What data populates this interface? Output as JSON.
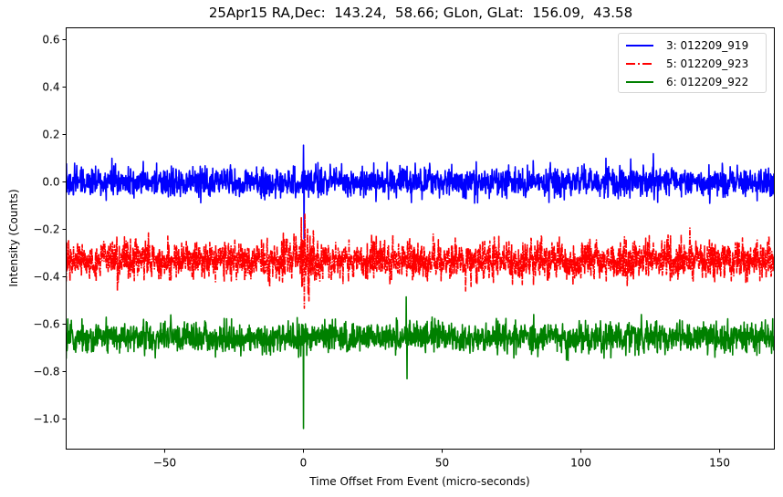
{
  "chart_data": {
    "type": "line",
    "title": "25Apr15 RA,Dec:  143.24,  58.66; GLon, GLat:  156.09,  43.58",
    "xlabel": "Time Offset From Event (micro-seconds)",
    "ylabel": "Intensity (Counts)",
    "xlim": [
      -85.5,
      169.7
    ],
    "ylim": [
      -1.127,
      0.65
    ],
    "xticks": [
      -50,
      0,
      50,
      100,
      150
    ],
    "xtick_labels": [
      "−50",
      "0",
      "50",
      "100",
      "150"
    ],
    "yticks": [
      0.6,
      0.4,
      0.2,
      0.0,
      -0.2,
      -0.4,
      -0.6,
      -0.8,
      -1.0
    ],
    "ytick_labels": [
      "0.6",
      "0.4",
      "0.2",
      "0.0",
      "−0.2",
      "−0.4",
      "−0.6",
      "−0.8",
      "−1.0"
    ],
    "grid": false,
    "legend_position": "upper right",
    "series": [
      {
        "name": "3: 012209_919",
        "color": "#0000ff",
        "linestyle": "solid",
        "baseline": 0.0,
        "noise_amplitude": 0.035,
        "seed": 11,
        "features": [
          {
            "x": 0.0,
            "y": 0.155
          },
          {
            "x": 0.2,
            "y": -0.24
          },
          {
            "x": -69.0,
            "y": 0.1
          },
          {
            "x": 109.0,
            "y": 0.1
          }
        ]
      },
      {
        "name": "5: 012209_923",
        "color": "#ff0000",
        "linestyle": "dashdot",
        "baseline": -0.33,
        "noise_amplitude": 0.045,
        "seed": 23,
        "features": [
          {
            "x": 0.5,
            "y": -0.17
          },
          {
            "x": 0.3,
            "y": -0.58
          },
          {
            "x": 1.5,
            "y": -0.19
          },
          {
            "x": 2.0,
            "y": -0.5
          },
          {
            "x": -67.0,
            "y": -0.46
          }
        ]
      },
      {
        "name": "6: 012209_922",
        "color": "#008000",
        "linestyle": "solid",
        "baseline": -0.655,
        "noise_amplitude": 0.035,
        "seed": 37,
        "features": [
          {
            "x": 0.0,
            "y": -1.04
          },
          {
            "x": 37.0,
            "y": -0.485
          },
          {
            "x": 37.3,
            "y": -0.83
          }
        ]
      }
    ]
  },
  "legend": {
    "items": [
      {
        "label": "3: 012209_919",
        "color": "#0000ff",
        "style": "solid"
      },
      {
        "label": "5: 012209_923",
        "color": "#ff0000",
        "style": "dashdot"
      },
      {
        "label": "6: 012209_922",
        "color": "#008000",
        "style": "solid"
      }
    ]
  }
}
